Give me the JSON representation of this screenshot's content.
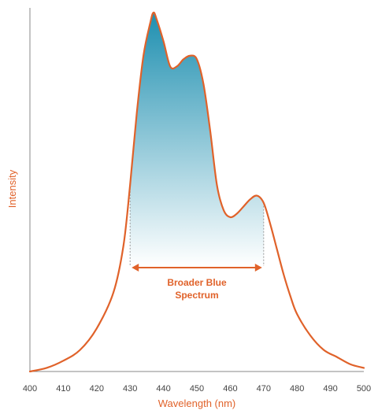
{
  "chart_data": {
    "type": "line",
    "xlabel": "Wavelength (nm)",
    "ylabel": "Intensity",
    "xlim": [
      400,
      500
    ],
    "ylim": [
      0,
      1
    ],
    "x_ticks": [
      "400",
      "410",
      "420",
      "430",
      "440",
      "450",
      "460",
      "470",
      "480",
      "490",
      "500"
    ],
    "grid": false,
    "series": [
      {
        "x": [
          400,
          405,
          410,
          415,
          420,
          425,
          428,
          430,
          432,
          434,
          436,
          437,
          438,
          440,
          442,
          444,
          446,
          448,
          450,
          452,
          454,
          456,
          458,
          460,
          462,
          464,
          466,
          468,
          470,
          472,
          474,
          476,
          478,
          480,
          484,
          488,
          492,
          496,
          500
        ],
        "y": [
          0.0,
          0.01,
          0.03,
          0.06,
          0.12,
          0.22,
          0.35,
          0.52,
          0.72,
          0.88,
          0.97,
          1.0,
          0.98,
          0.92,
          0.85,
          0.85,
          0.87,
          0.88,
          0.87,
          0.8,
          0.67,
          0.52,
          0.45,
          0.43,
          0.44,
          0.46,
          0.48,
          0.49,
          0.47,
          0.41,
          0.34,
          0.27,
          0.21,
          0.16,
          0.1,
          0.06,
          0.04,
          0.02,
          0.01
        ]
      }
    ],
    "highlight_range": [
      430,
      470
    ],
    "annotation": {
      "line1": "Broader Blue",
      "line2": "Spectrum",
      "x_range": [
        430,
        470
      ]
    },
    "colors": {
      "curve": "#e0622a",
      "fill_top": "#1e8fb0",
      "fill_bottom": "#ffffff",
      "axis": "#888888",
      "label": "#e0622a"
    }
  }
}
